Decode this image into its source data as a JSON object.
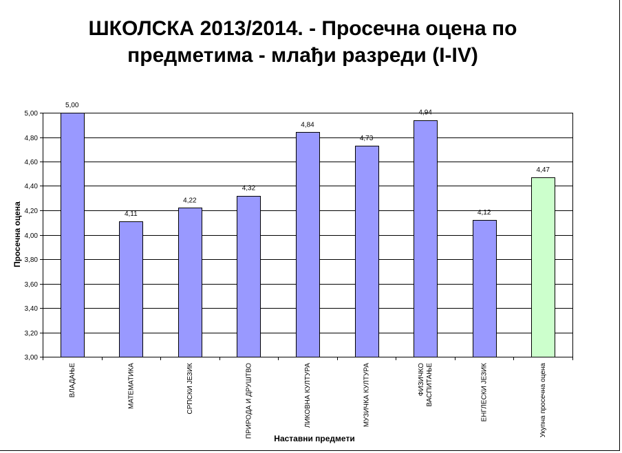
{
  "chart_data": {
    "type": "bar",
    "title_lines": [
      "ШКОЛСКА 2013/2014. - Просечна оцена по",
      "предметима - млађи разреди (I-IV)"
    ],
    "xlabel": "Наставни предмети",
    "ylabel": "Просечна оцена",
    "ylim": [
      3.0,
      5.0
    ],
    "yticks": [
      "3,00",
      "3,20",
      "3,40",
      "3,60",
      "3,80",
      "4,00",
      "4,20",
      "4,40",
      "4,60",
      "4,80",
      "5,00"
    ],
    "ytick_values": [
      3.0,
      3.2,
      3.4,
      3.6,
      3.8,
      4.0,
      4.2,
      4.4,
      4.6,
      4.8,
      5.0
    ],
    "grid": true,
    "legend": "none",
    "categories": [
      [
        "ВЛАДАЊЕ"
      ],
      [
        "МАТЕМАТИКА"
      ],
      [
        "СРПСКИ ЈЕЗИК"
      ],
      [
        "ПРИРОДА И ДРУШТВО"
      ],
      [
        "ЛИКОВНА КУЛТУРА"
      ],
      [
        "МУЗИЧКА КУЛТУРА"
      ],
      [
        "ФИЗИЧКО",
        "ВАСПИТАЊЕ"
      ],
      [
        "ЕНГЛЕСКИ ЈЕЗИК"
      ],
      [
        "Укупна просечна оцена"
      ]
    ],
    "values": [
      5.0,
      4.11,
      4.22,
      4.32,
      4.84,
      4.73,
      4.94,
      4.12,
      4.47
    ],
    "value_labels": [
      "5,00",
      "4,11",
      "4,22",
      "4,32",
      "4,84",
      "4,73",
      "4,94",
      "4,12",
      "4,47"
    ],
    "colors": {
      "bar": "#9999ff",
      "highlight_bar": "#ccffcc",
      "gridline": "#000000"
    },
    "highlight_index": 8
  }
}
